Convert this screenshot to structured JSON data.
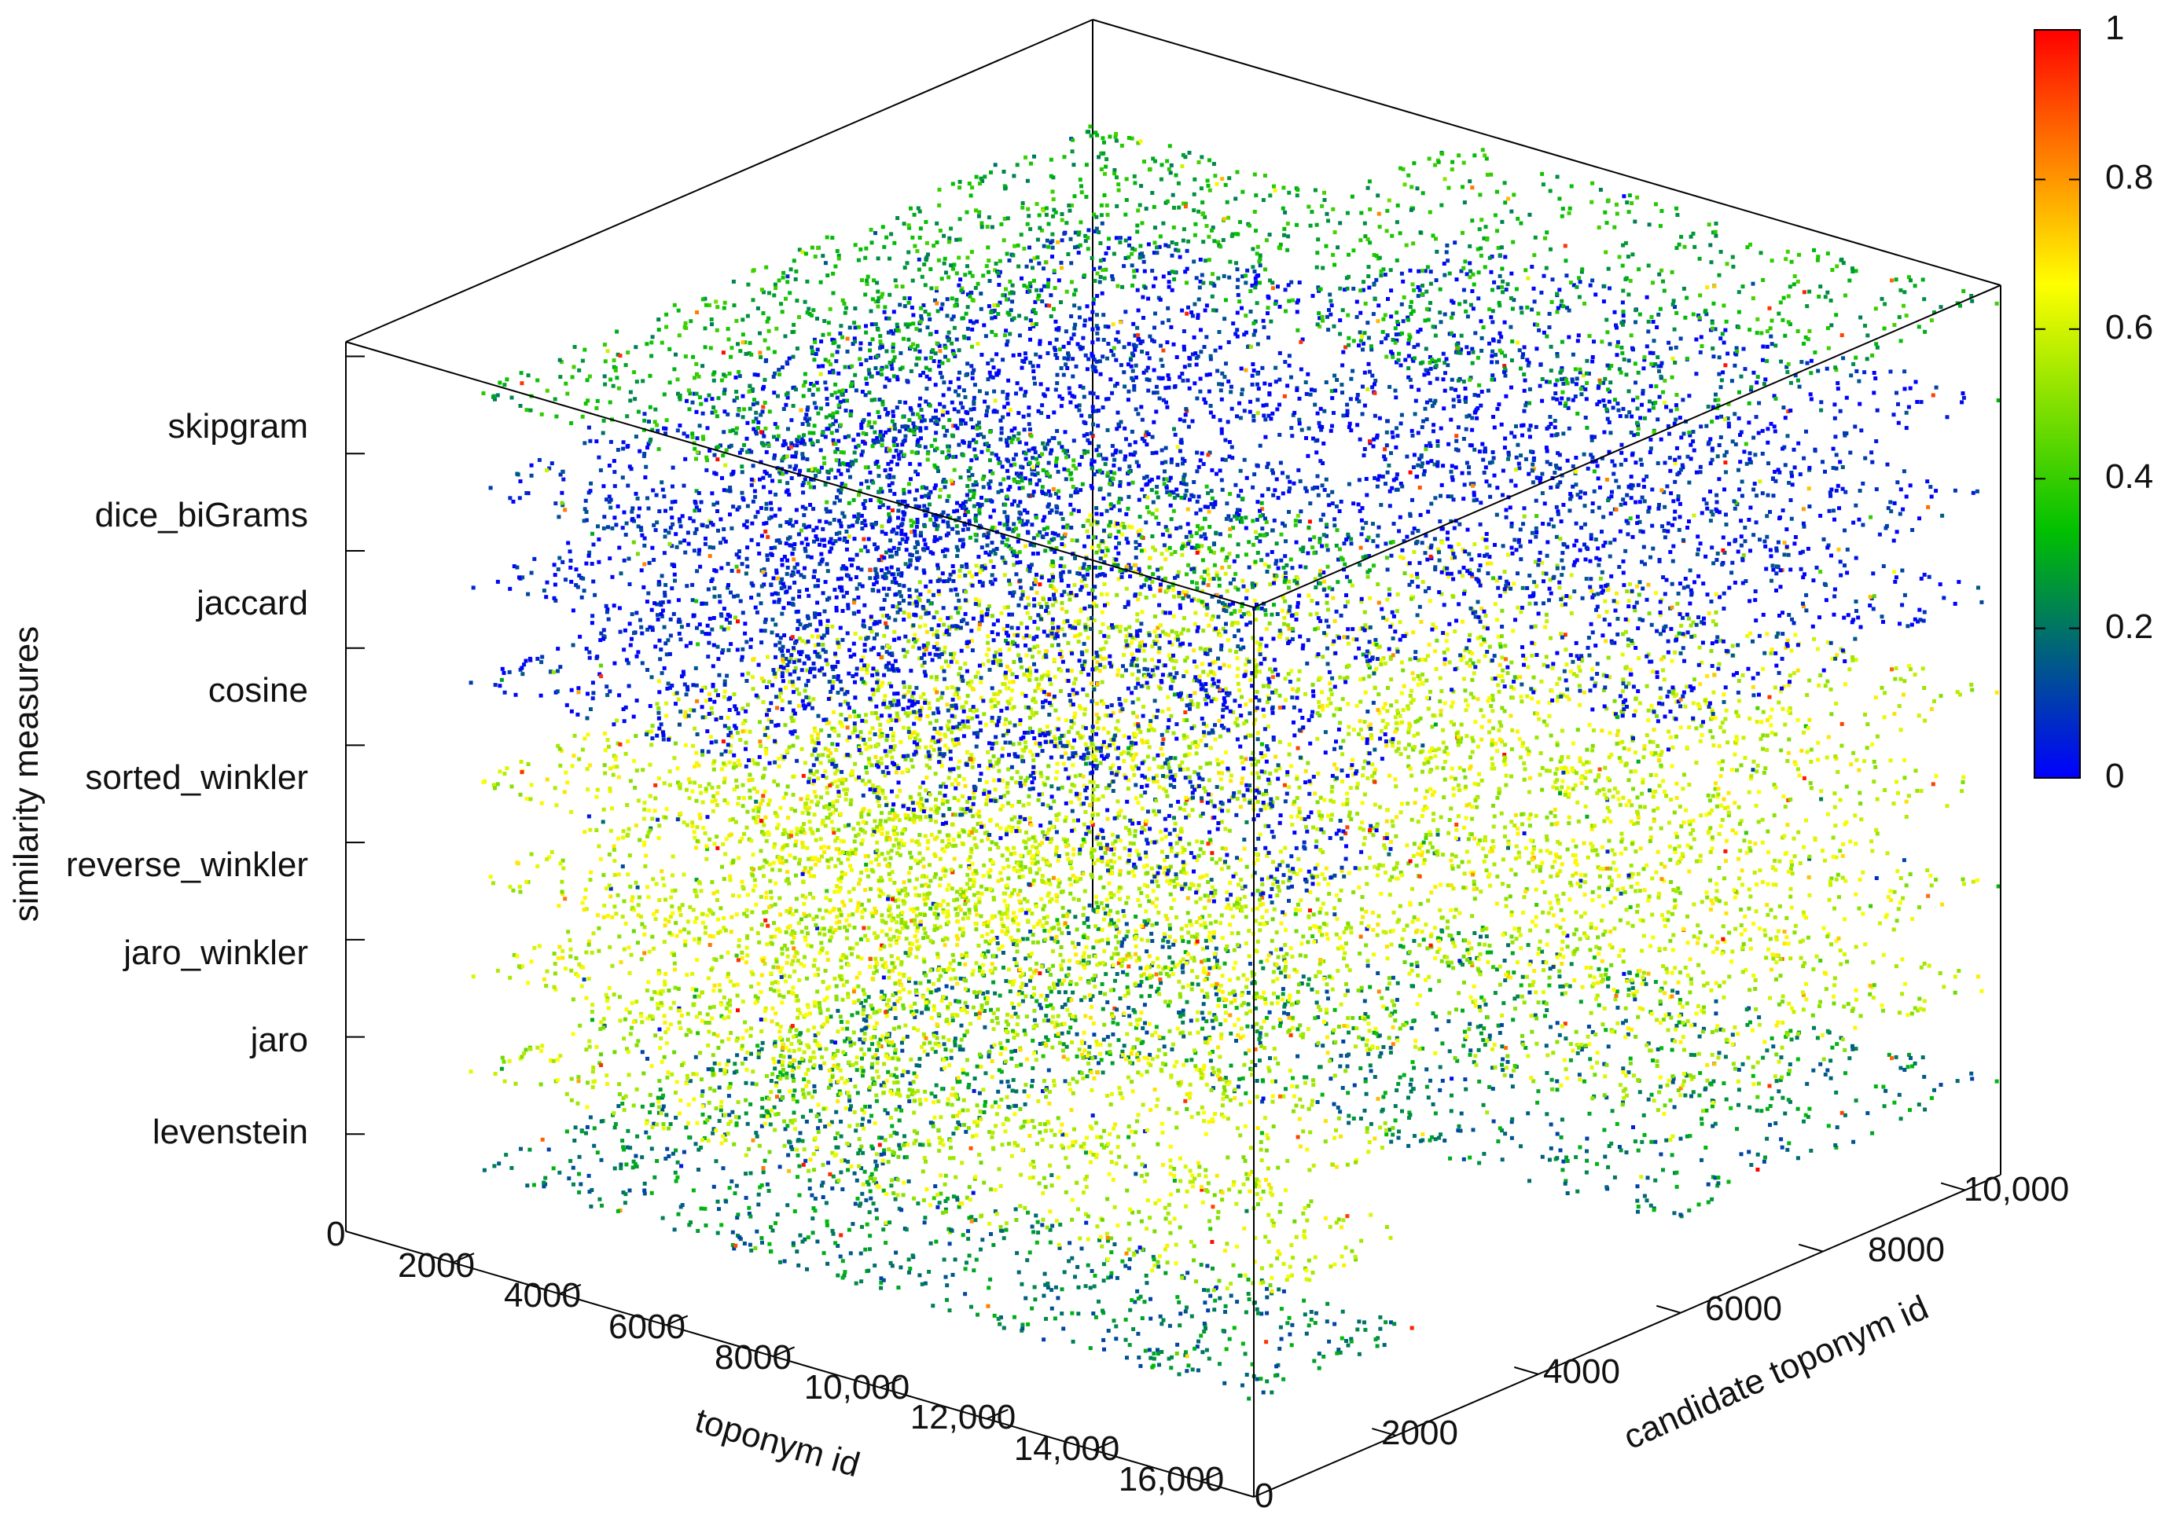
{
  "chart_data": {
    "type": "scatter3d",
    "title": "",
    "xlabel": "toponym id",
    "ylabel": "candidate toponym id",
    "zlabel": "similarity measures",
    "x_ticks": [
      "2000",
      "4000",
      "6000",
      "8000",
      "10,000",
      "12,000",
      "14,000",
      "16,000"
    ],
    "x_origin_label": "0",
    "xlim": [
      0,
      17000
    ],
    "y_ticks": [
      "2000",
      "4000",
      "6000",
      "8000",
      "10,000"
    ],
    "y_origin_label": "0",
    "ylim": [
      0,
      10500
    ],
    "z_origin_label": "0",
    "z_categories": [
      "levenstein",
      "jaro",
      "jaro_winkler",
      "reverse_winkler",
      "sorted_winkler",
      "cosine",
      "jaccard",
      "dice_biGrams",
      "skipgram"
    ],
    "colorbar": {
      "min": 0,
      "max": 1,
      "ticks": [
        "0",
        "0.2",
        "0.4",
        "0.6",
        "0.8",
        "1"
      ],
      "colors": [
        "#0000ff",
        "#00c000",
        "#ffff00",
        "#ff0000"
      ]
    },
    "layer_dominant_similarity": {
      "levenstein": 0.22,
      "jaro": 0.58,
      "jaro_winkler": 0.6,
      "reverse_winkler": 0.6,
      "sorted_winkler": 0.6,
      "cosine": 0.05,
      "jaccard": 0.05,
      "dice_biGrams": 0.05,
      "skipgram": 0.32
    },
    "grid": false,
    "legend": "colorbar-right"
  }
}
